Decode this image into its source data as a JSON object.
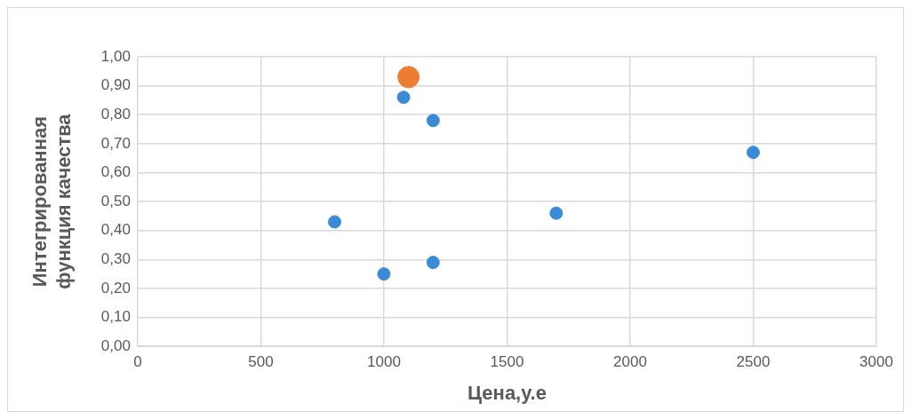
{
  "chart_data": {
    "type": "scatter",
    "xlabel": "Цена,у.е",
    "ylabel": "Интегрированная функция качества",
    "xlim": [
      0,
      3000
    ],
    "xticks": [
      0,
      500,
      1000,
      1500,
      2000,
      2500,
      3000
    ],
    "ylim": [
      0,
      1
    ],
    "yticks": [
      {
        "value": 0,
        "label": "0,00"
      },
      {
        "value": 0.1,
        "label": "0,10"
      },
      {
        "value": 0.2,
        "label": "0,20"
      },
      {
        "value": 0.3,
        "label": "0,30"
      },
      {
        "value": 0.4,
        "label": "0,40"
      },
      {
        "value": 0.5,
        "label": "0,50"
      },
      {
        "value": 0.6,
        "label": "0,60"
      },
      {
        "value": 0.7,
        "label": "0,70"
      },
      {
        "value": 0.8,
        "label": "0,80"
      },
      {
        "value": 0.9,
        "label": "0,90"
      },
      {
        "value": 1,
        "label": "1,00"
      }
    ],
    "grid": true,
    "legend": false,
    "marker": "circle",
    "series": [
      {
        "color": "#3a8ad6",
        "x": [
          800,
          1000,
          1080,
          1200,
          1200,
          1700,
          2500
        ],
        "values": [
          0.43,
          0.25,
          0.86,
          0.78,
          0.29,
          0.46,
          0.67
        ]
      },
      {
        "color": "#ed7d31",
        "x": [
          1100
        ],
        "values": [
          0.93
        ]
      }
    ]
  }
}
